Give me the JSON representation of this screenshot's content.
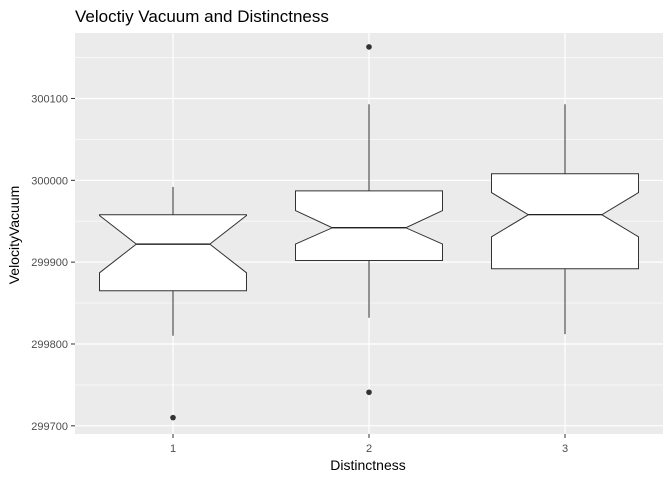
{
  "chart_data": {
    "type": "boxplot",
    "notched": true,
    "title": "Veloctiy Vacuum and Distinctness",
    "xlabel": "Distinctness",
    "ylabel": "VelocityVacuum",
    "categories": [
      "1",
      "2",
      "3"
    ],
    "ylim": [
      299690,
      300180
    ],
    "yticks": [
      299700,
      299800,
      299900,
      300000,
      300100
    ],
    "ytick_labels": [
      "299700",
      "299800",
      "299900",
      "300000",
      "300100"
    ],
    "grid": true,
    "boxes": [
      {
        "category": "1",
        "whisker_low": 299810,
        "q1": 299865,
        "median": 299922,
        "q3": 299958,
        "whisker_high": 299992,
        "notch_low": 299887,
        "notch_high": 299957,
        "outliers": [
          299710
        ]
      },
      {
        "category": "2",
        "whisker_low": 299832,
        "q1": 299902,
        "median": 299942,
        "q3": 299987,
        "whisker_high": 300093,
        "notch_low": 299922,
        "notch_high": 299963,
        "outliers": [
          299741,
          300163
        ]
      },
      {
        "category": "3",
        "whisker_low": 299812,
        "q1": 299892,
        "median": 299958,
        "q3": 300008,
        "whisker_high": 300093,
        "notch_low": 299931,
        "notch_high": 299985,
        "outliers": []
      }
    ],
    "colors": {
      "panel": "#ebebeb",
      "grid_major": "#ffffff",
      "box_fill": "#ffffff",
      "box_line": "#333333",
      "point": "#333333"
    }
  }
}
